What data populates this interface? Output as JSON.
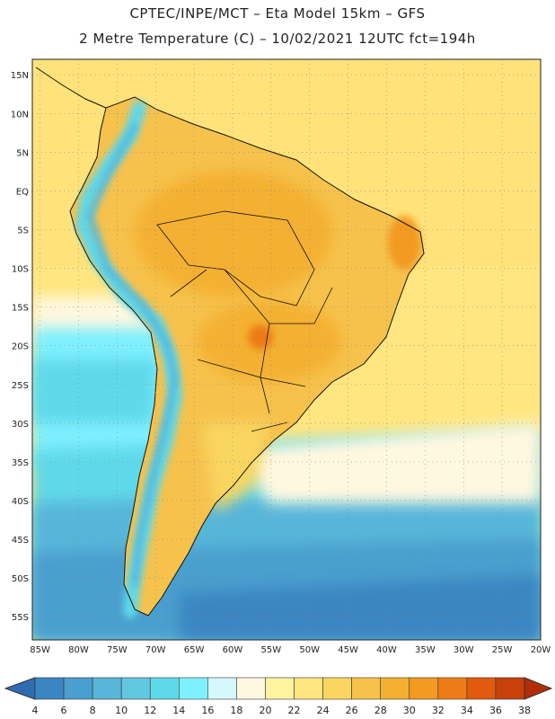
{
  "header": {
    "line1": "CPTEC/INPE/MCT –  Eta Model 15km – GFS",
    "line2": "2 Metre Temperature (C) – 10/02/2021 12UTC fct=194h"
  },
  "map": {
    "lat_labels": [
      "15N",
      "10N",
      "5N",
      "EQ",
      "5S",
      "10S",
      "15S",
      "20S",
      "25S",
      "30S",
      "35S",
      "40S",
      "45S",
      "50S",
      "55S"
    ],
    "lon_labels": [
      "85W",
      "80W",
      "75W",
      "70W",
      "65W",
      "60W",
      "55W",
      "50W",
      "45W",
      "40W",
      "35W",
      "30W",
      "25W",
      "20W"
    ],
    "lat_range": [
      17,
      -58
    ],
    "lon_range": [
      -86,
      -20
    ]
  },
  "colorbar": {
    "labels": [
      "4",
      "6",
      "8",
      "10",
      "12",
      "14",
      "16",
      "18",
      "20",
      "22",
      "24",
      "26",
      "28",
      "30",
      "32",
      "34",
      "36",
      "38"
    ],
    "colors": [
      "#2f6db1",
      "#3b86c2",
      "#4a9fce",
      "#57b6d9",
      "#61c8e0",
      "#5fd9ea",
      "#7ef0ff",
      "#d4f8fb",
      "#fff8e0",
      "#fff3a0",
      "#ffe680",
      "#f9d660",
      "#f6c24c",
      "#f4b030",
      "#f29a22",
      "#ee7c16",
      "#e25a0e",
      "#c8400a",
      "#b32e06"
    ]
  }
}
